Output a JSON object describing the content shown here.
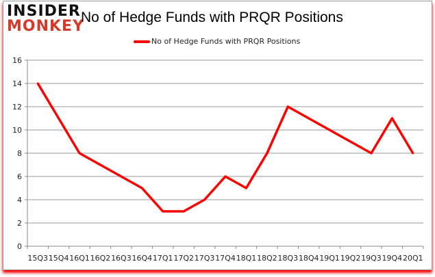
{
  "logo": {
    "line1": "INSIDER",
    "line2": "MONKEY"
  },
  "chart_data": {
    "type": "line",
    "title": "No of Hedge Funds with PRQR Positions",
    "xlabel": "",
    "ylabel": "",
    "categories": [
      "15Q3",
      "15Q4",
      "16Q1",
      "16Q2",
      "16Q3",
      "16Q4",
      "17Q1",
      "17Q2",
      "17Q3",
      "17Q4",
      "18Q1",
      "18Q2",
      "18Q3",
      "18Q4",
      "19Q1",
      "19Q2",
      "19Q3",
      "19Q4",
      "20Q1"
    ],
    "series": [
      {
        "name": "No of Hedge Funds with PRQR Positions",
        "color": "#ff0000",
        "values": [
          14,
          11,
          8,
          7,
          6,
          5,
          3,
          3,
          4,
          6,
          5,
          8,
          12,
          11,
          10,
          9,
          8,
          11,
          8
        ]
      }
    ],
    "ylim": [
      0,
      16
    ],
    "yticks": [
      0,
      2,
      4,
      6,
      8,
      10,
      12,
      14,
      16
    ],
    "grid": true,
    "legend": "top-center"
  }
}
